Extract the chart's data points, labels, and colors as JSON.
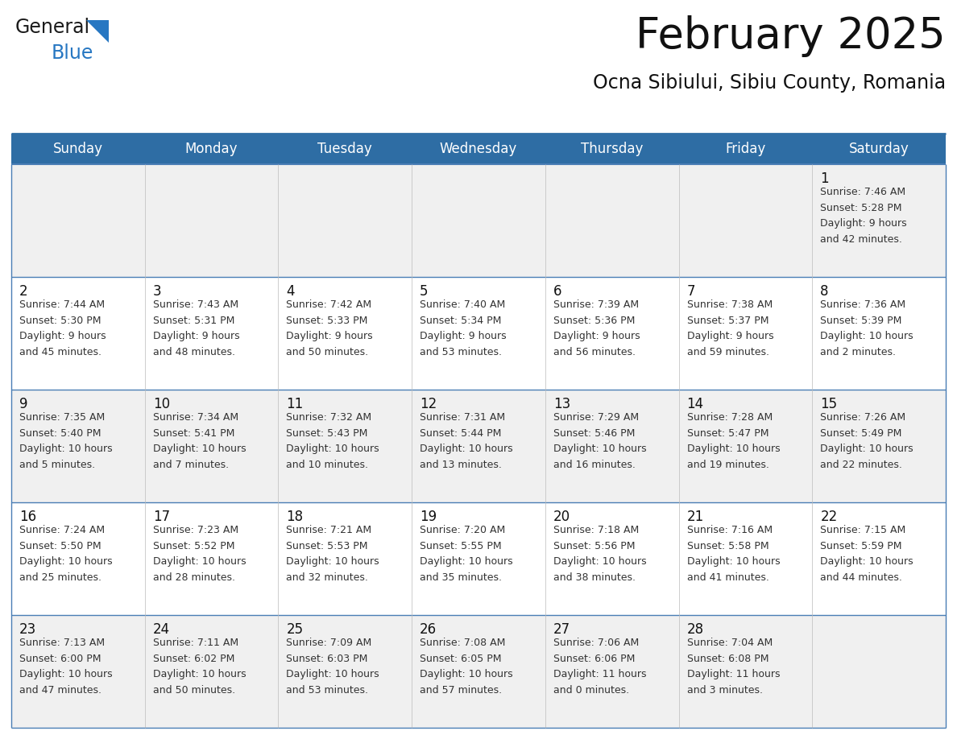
{
  "title": "February 2025",
  "subtitle": "Ocna Sibiului, Sibiu County, Romania",
  "header_bg": "#2E6DA4",
  "header_text": "#FFFFFF",
  "cell_bg_odd": "#F0F0F0",
  "cell_bg_even": "#FFFFFF",
  "day_headers": [
    "Sunday",
    "Monday",
    "Tuesday",
    "Wednesday",
    "Thursday",
    "Friday",
    "Saturday"
  ],
  "days_data": [
    {
      "day": 1,
      "col": 6,
      "row": 0,
      "sunrise": "7:46 AM",
      "sunset": "5:28 PM",
      "daylight": "9 hours and 42 minutes."
    },
    {
      "day": 2,
      "col": 0,
      "row": 1,
      "sunrise": "7:44 AM",
      "sunset": "5:30 PM",
      "daylight": "9 hours and 45 minutes."
    },
    {
      "day": 3,
      "col": 1,
      "row": 1,
      "sunrise": "7:43 AM",
      "sunset": "5:31 PM",
      "daylight": "9 hours and 48 minutes."
    },
    {
      "day": 4,
      "col": 2,
      "row": 1,
      "sunrise": "7:42 AM",
      "sunset": "5:33 PM",
      "daylight": "9 hours and 50 minutes."
    },
    {
      "day": 5,
      "col": 3,
      "row": 1,
      "sunrise": "7:40 AM",
      "sunset": "5:34 PM",
      "daylight": "9 hours and 53 minutes."
    },
    {
      "day": 6,
      "col": 4,
      "row": 1,
      "sunrise": "7:39 AM",
      "sunset": "5:36 PM",
      "daylight": "9 hours and 56 minutes."
    },
    {
      "day": 7,
      "col": 5,
      "row": 1,
      "sunrise": "7:38 AM",
      "sunset": "5:37 PM",
      "daylight": "9 hours and 59 minutes."
    },
    {
      "day": 8,
      "col": 6,
      "row": 1,
      "sunrise": "7:36 AM",
      "sunset": "5:39 PM",
      "daylight": "10 hours and 2 minutes."
    },
    {
      "day": 9,
      "col": 0,
      "row": 2,
      "sunrise": "7:35 AM",
      "sunset": "5:40 PM",
      "daylight": "10 hours and 5 minutes."
    },
    {
      "day": 10,
      "col": 1,
      "row": 2,
      "sunrise": "7:34 AM",
      "sunset": "5:41 PM",
      "daylight": "10 hours and 7 minutes."
    },
    {
      "day": 11,
      "col": 2,
      "row": 2,
      "sunrise": "7:32 AM",
      "sunset": "5:43 PM",
      "daylight": "10 hours and 10 minutes."
    },
    {
      "day": 12,
      "col": 3,
      "row": 2,
      "sunrise": "7:31 AM",
      "sunset": "5:44 PM",
      "daylight": "10 hours and 13 minutes."
    },
    {
      "day": 13,
      "col": 4,
      "row": 2,
      "sunrise": "7:29 AM",
      "sunset": "5:46 PM",
      "daylight": "10 hours and 16 minutes."
    },
    {
      "day": 14,
      "col": 5,
      "row": 2,
      "sunrise": "7:28 AM",
      "sunset": "5:47 PM",
      "daylight": "10 hours and 19 minutes."
    },
    {
      "day": 15,
      "col": 6,
      "row": 2,
      "sunrise": "7:26 AM",
      "sunset": "5:49 PM",
      "daylight": "10 hours and 22 minutes."
    },
    {
      "day": 16,
      "col": 0,
      "row": 3,
      "sunrise": "7:24 AM",
      "sunset": "5:50 PM",
      "daylight": "10 hours and 25 minutes."
    },
    {
      "day": 17,
      "col": 1,
      "row": 3,
      "sunrise": "7:23 AM",
      "sunset": "5:52 PM",
      "daylight": "10 hours and 28 minutes."
    },
    {
      "day": 18,
      "col": 2,
      "row": 3,
      "sunrise": "7:21 AM",
      "sunset": "5:53 PM",
      "daylight": "10 hours and 32 minutes."
    },
    {
      "day": 19,
      "col": 3,
      "row": 3,
      "sunrise": "7:20 AM",
      "sunset": "5:55 PM",
      "daylight": "10 hours and 35 minutes."
    },
    {
      "day": 20,
      "col": 4,
      "row": 3,
      "sunrise": "7:18 AM",
      "sunset": "5:56 PM",
      "daylight": "10 hours and 38 minutes."
    },
    {
      "day": 21,
      "col": 5,
      "row": 3,
      "sunrise": "7:16 AM",
      "sunset": "5:58 PM",
      "daylight": "10 hours and 41 minutes."
    },
    {
      "day": 22,
      "col": 6,
      "row": 3,
      "sunrise": "7:15 AM",
      "sunset": "5:59 PM",
      "daylight": "10 hours and 44 minutes."
    },
    {
      "day": 23,
      "col": 0,
      "row": 4,
      "sunrise": "7:13 AM",
      "sunset": "6:00 PM",
      "daylight": "10 hours and 47 minutes."
    },
    {
      "day": 24,
      "col": 1,
      "row": 4,
      "sunrise": "7:11 AM",
      "sunset": "6:02 PM",
      "daylight": "10 hours and 50 minutes."
    },
    {
      "day": 25,
      "col": 2,
      "row": 4,
      "sunrise": "7:09 AM",
      "sunset": "6:03 PM",
      "daylight": "10 hours and 53 minutes."
    },
    {
      "day": 26,
      "col": 3,
      "row": 4,
      "sunrise": "7:08 AM",
      "sunset": "6:05 PM",
      "daylight": "10 hours and 57 minutes."
    },
    {
      "day": 27,
      "col": 4,
      "row": 4,
      "sunrise": "7:06 AM",
      "sunset": "6:06 PM",
      "daylight": "11 hours and 0 minutes."
    },
    {
      "day": 28,
      "col": 5,
      "row": 4,
      "sunrise": "7:04 AM",
      "sunset": "6:08 PM",
      "daylight": "11 hours and 3 minutes."
    }
  ],
  "num_rows": 5,
  "logo_color_general": "#1a1a1a",
  "logo_color_blue": "#2777C2",
  "logo_triangle_color": "#2777C2",
  "title_fontsize": 38,
  "subtitle_fontsize": 17,
  "header_fontsize": 12,
  "day_num_fontsize": 12,
  "cell_text_fontsize": 9,
  "separator_color": "#2E6DA4",
  "line_color": "#4A7EB5"
}
